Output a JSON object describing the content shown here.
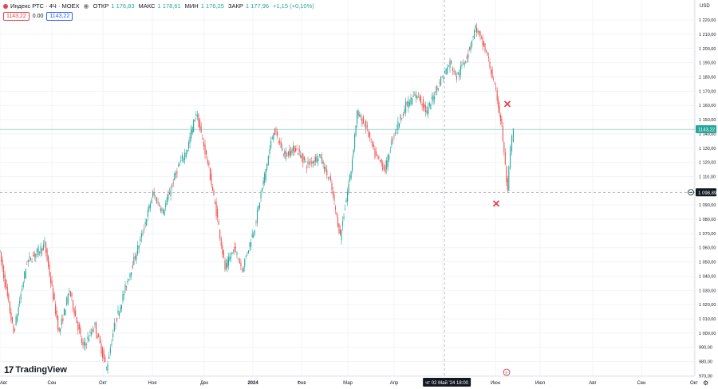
{
  "header": {
    "symbol": "Индекс РТС · 4Ч · MOEX",
    "open_label": "ОТКР",
    "open": "1 176,83",
    "high_label": "МАКС",
    "high": "1 178,61",
    "low_label": "МИН",
    "low": "1 176,25",
    "close_label": "ЗАКР",
    "close": "1 177,96",
    "change": "+1,15 (+0,10%)"
  },
  "pills": {
    "sell": "1143,22",
    "spread": "0.00",
    "buy": "1143,22"
  },
  "brand": "TradingView",
  "currency": "USD",
  "colors": {
    "up": "#26a69a",
    "down": "#ef5350",
    "marker": "#e8434b"
  },
  "chart_data": {
    "type": "candlestick",
    "ylim": [
      970,
      1223
    ],
    "y_ticks": [
      970,
      980,
      990,
      1000,
      1010,
      1020,
      1030,
      1040,
      1050,
      1060,
      1070,
      1080,
      1090,
      1100,
      1110,
      1120,
      1130,
      1140,
      1150,
      1160,
      1170,
      1180,
      1190,
      1200,
      1210,
      1220
    ],
    "y_tick_labels": [
      "970,00",
      "980,00",
      "990,00",
      "1 000,00",
      "1 010,00",
      "1 020,00",
      "1 030,00",
      "1 040,00",
      "1 050,00",
      "1 060,00",
      "1 070,00",
      "1 080,00",
      "1 090,00",
      "1 100,00",
      "1 110,00",
      "1 120,00",
      "1 130,00",
      "1 140,00",
      "1 150,00",
      "1 160,00",
      "1 170,00",
      "1 180,00",
      "1 190,00",
      "1 200,00",
      "1 210,00",
      "1 220,00"
    ],
    "x_labels": [
      "Авг",
      "Сен",
      "Окт",
      "Ноя",
      "Дек",
      "2024",
      "Фев",
      "Мар",
      "Апр",
      "Май",
      "Июн",
      "Июл",
      "Авг",
      "Сен",
      "Окт"
    ],
    "x_labels_bold": [
      "2024"
    ],
    "price_path": [
      [
        "2023-07-28",
        1060
      ],
      [
        "2023-08-07",
        1000
      ],
      [
        "2023-08-16",
        1050
      ],
      [
        "2023-08-28",
        1062
      ],
      [
        "2023-09-06",
        1000
      ],
      [
        "2023-09-12",
        1030
      ],
      [
        "2023-09-20",
        990
      ],
      [
        "2023-09-27",
        1005
      ],
      [
        "2023-10-04",
        975
      ],
      [
        "2023-10-09",
        1005
      ],
      [
        "2023-10-18",
        1040
      ],
      [
        "2023-10-26",
        1068
      ],
      [
        "2023-11-02",
        1098
      ],
      [
        "2023-11-08",
        1085
      ],
      [
        "2023-11-16",
        1115
      ],
      [
        "2023-11-22",
        1130
      ],
      [
        "2023-11-27",
        1155
      ],
      [
        "2023-12-04",
        1120
      ],
      [
        "2023-12-11",
        1075
      ],
      [
        "2023-12-15",
        1045
      ],
      [
        "2023-12-21",
        1060
      ],
      [
        "2023-12-26",
        1045
      ],
      [
        "2024-01-03",
        1075
      ],
      [
        "2024-01-10",
        1115
      ],
      [
        "2024-01-15",
        1143
      ],
      [
        "2024-01-22",
        1125
      ],
      [
        "2024-01-29",
        1130
      ],
      [
        "2024-02-05",
        1118
      ],
      [
        "2024-02-13",
        1125
      ],
      [
        "2024-02-20",
        1105
      ],
      [
        "2024-02-26",
        1068
      ],
      [
        "2024-03-04",
        1115
      ],
      [
        "2024-03-08",
        1155
      ],
      [
        "2024-03-14",
        1145
      ],
      [
        "2024-03-20",
        1125
      ],
      [
        "2024-03-27",
        1115
      ],
      [
        "2024-04-01",
        1138
      ],
      [
        "2024-04-09",
        1160
      ],
      [
        "2024-04-16",
        1168
      ],
      [
        "2024-04-22",
        1155
      ],
      [
        "2024-04-29",
        1175
      ],
      [
        "2024-05-06",
        1190
      ],
      [
        "2024-05-10",
        1180
      ],
      [
        "2024-05-16",
        1195
      ],
      [
        "2024-05-21",
        1215
      ],
      [
        "2024-05-28",
        1195
      ],
      [
        "2024-06-03",
        1165
      ],
      [
        "2024-06-06",
        1145
      ],
      [
        "2024-06-10",
        1098
      ],
      [
        "2024-06-12",
        1130
      ],
      [
        "2024-06-14",
        1143.22
      ]
    ],
    "last_price": "1143,22",
    "crosshair": {
      "date_label": "чт 02 Май '24",
      "time_label": "18:00",
      "price_label": "1 098,89"
    },
    "markers": [
      {
        "label": "x",
        "price": 1161
      },
      {
        "label": "x",
        "price": 1091
      }
    ]
  }
}
